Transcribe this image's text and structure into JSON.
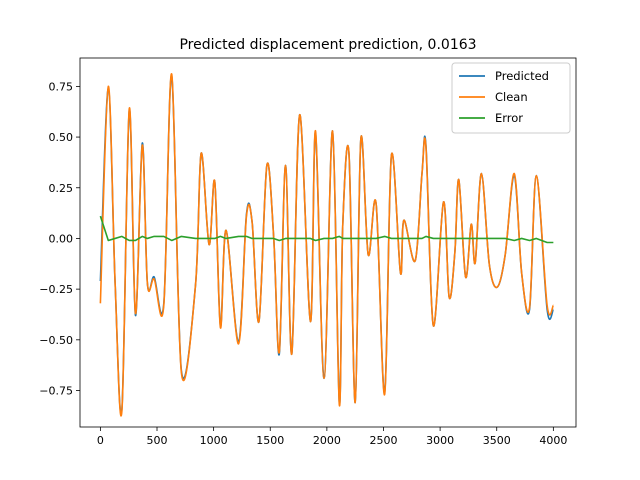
{
  "chart_data": {
    "type": "line",
    "title": "Predicted displacement prediction, 0.0163",
    "xlabel": "",
    "ylabel": "",
    "xlim": [
      -180,
      4200
    ],
    "ylim": [
      -0.93,
      0.89
    ],
    "xticks": [
      0,
      500,
      1000,
      1500,
      2000,
      2500,
      3000,
      3500,
      4000
    ],
    "xtick_labels": [
      "0",
      "500",
      "1000",
      "1500",
      "2000",
      "2500",
      "3000",
      "3500",
      "4000"
    ],
    "yticks": [
      -0.75,
      -0.5,
      -0.25,
      0.0,
      0.25,
      0.5,
      0.75
    ],
    "ytick_labels": [
      "−0.75",
      "−0.50",
      "−0.25",
      "0.00",
      "0.25",
      "0.50",
      "0.75"
    ],
    "grid": false,
    "legend_position": "top-right",
    "x": [
      0,
      70,
      130,
      190,
      255,
      310,
      370,
      415,
      475,
      560,
      630,
      715,
      840,
      890,
      960,
      1010,
      1060,
      1110,
      1220,
      1290,
      1340,
      1400,
      1470,
      1530,
      1580,
      1635,
      1690,
      1760,
      1855,
      1900,
      1975,
      2050,
      2110,
      2140,
      2195,
      2250,
      2300,
      2365,
      2435,
      2510,
      2570,
      2650,
      2680,
      2780,
      2840,
      2875,
      2940,
      3030,
      3080,
      3130,
      3165,
      3225,
      3275,
      3310,
      3365,
      3435,
      3505,
      3575,
      3655,
      3720,
      3790,
      3850,
      3945,
      4000
    ],
    "series": [
      {
        "name": "Predicted",
        "color": "#1f77b4",
        "values": [
          -0.21,
          0.74,
          -0.22,
          -0.84,
          0.63,
          -0.38,
          0.47,
          -0.22,
          -0.19,
          -0.32,
          0.8,
          -0.65,
          -0.23,
          0.42,
          -0.03,
          0.28,
          -0.43,
          0.04,
          -0.51,
          0.12,
          0.08,
          -0.41,
          0.36,
          0.01,
          -0.57,
          0.36,
          -0.57,
          0.61,
          -0.41,
          0.52,
          -0.69,
          0.53,
          -0.81,
          0.06,
          0.42,
          -0.81,
          0.49,
          -0.08,
          0.17,
          -0.76,
          0.41,
          -0.17,
          0.09,
          -0.11,
          0.32,
          0.46,
          -0.43,
          0.18,
          -0.29,
          -0.07,
          0.29,
          -0.19,
          0.07,
          -0.12,
          0.32,
          -0.13,
          -0.24,
          -0.08,
          0.31,
          -0.17,
          -0.35,
          0.31,
          -0.35,
          -0.35
        ]
      },
      {
        "name": "Clean",
        "color": "#ff7f0e",
        "values": [
          -0.32,
          0.75,
          -0.22,
          -0.85,
          0.64,
          -0.37,
          0.46,
          -0.22,
          -0.2,
          -0.33,
          0.81,
          -0.66,
          -0.23,
          0.42,
          -0.03,
          0.28,
          -0.44,
          0.04,
          -0.52,
          0.11,
          0.08,
          -0.41,
          0.36,
          0.01,
          -0.56,
          0.36,
          -0.57,
          0.61,
          -0.41,
          0.53,
          -0.69,
          0.53,
          -0.82,
          0.06,
          0.42,
          -0.81,
          0.49,
          -0.08,
          0.17,
          -0.77,
          0.41,
          -0.17,
          0.09,
          -0.11,
          0.32,
          0.45,
          -0.43,
          0.18,
          -0.29,
          -0.07,
          0.29,
          -0.19,
          0.07,
          -0.12,
          0.32,
          -0.13,
          -0.24,
          -0.08,
          0.32,
          -0.17,
          -0.34,
          0.31,
          -0.33,
          -0.33
        ]
      },
      {
        "name": "Error",
        "color": "#2ca02c",
        "values": [
          0.11,
          -0.01,
          0.0,
          0.01,
          -0.01,
          -0.01,
          0.01,
          0.0,
          0.01,
          0.01,
          -0.01,
          0.01,
          0.0,
          0.0,
          0.0,
          0.0,
          0.01,
          0.0,
          0.01,
          0.01,
          0.0,
          0.0,
          0.0,
          0.0,
          -0.01,
          0.0,
          0.0,
          0.0,
          0.0,
          -0.01,
          0.0,
          0.0,
          0.01,
          0.0,
          0.0,
          0.0,
          0.0,
          0.0,
          0.0,
          0.01,
          0.0,
          0.0,
          0.0,
          0.0,
          0.0,
          0.01,
          0.0,
          0.0,
          0.0,
          0.0,
          0.0,
          0.0,
          0.0,
          0.0,
          0.0,
          0.0,
          0.0,
          0.0,
          -0.01,
          0.0,
          -0.01,
          0.0,
          -0.02,
          -0.02
        ]
      }
    ]
  }
}
